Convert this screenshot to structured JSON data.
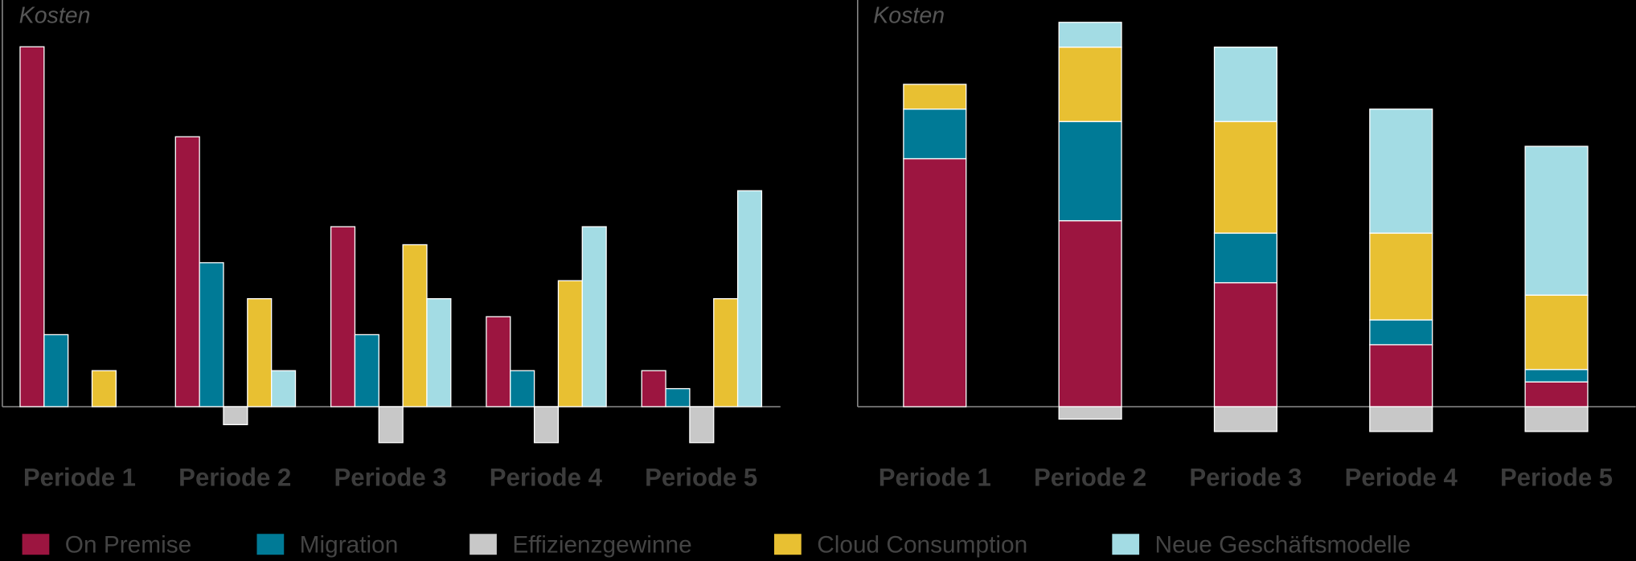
{
  "chart_data": [
    {
      "type": "grouped_bar",
      "y_label": "Kosten",
      "categories": [
        "Periode 1",
        "Periode 2",
        "Periode 3",
        "Periode 4",
        "Periode 5"
      ],
      "ylim": [
        -2,
        11.3
      ],
      "series": [
        {
          "name": "On Premise",
          "color": "#9c1540",
          "values": [
            10,
            7.5,
            5,
            2.5,
            1
          ]
        },
        {
          "name": "Migration",
          "color": "#007a96",
          "values": [
            2,
            4,
            2,
            1,
            0.5
          ]
        },
        {
          "name": "Effizienzgewinne",
          "color": "#c8c8c8",
          "values": [
            0,
            -0.5,
            -1,
            -1,
            -1
          ]
        },
        {
          "name": "Cloud Consumption",
          "color": "#e8c032",
          "values": [
            1,
            3,
            4.5,
            3.5,
            3
          ]
        },
        {
          "name": "Neue Geschäftsmodelle",
          "color": "#a3dce4",
          "values": [
            0,
            1,
            3,
            5,
            6
          ]
        }
      ]
    },
    {
      "type": "stacked_bar",
      "y_label": "Kosten",
      "categories": [
        "Periode 1",
        "Periode 2",
        "Periode 3",
        "Periode 4",
        "Periode 5"
      ],
      "ylim": [
        -2,
        16.4
      ],
      "series": [
        {
          "name": "On Premise",
          "color": "#9c1540",
          "values": [
            10,
            7.5,
            5,
            2.5,
            1
          ]
        },
        {
          "name": "Migration",
          "color": "#007a96",
          "values": [
            2,
            4,
            2,
            1,
            0.5
          ]
        },
        {
          "name": "Effizienzgewinne",
          "color": "#c8c8c8",
          "values": [
            0,
            -0.5,
            -1,
            -1,
            -1
          ]
        },
        {
          "name": "Cloud Consumption",
          "color": "#e8c032",
          "values": [
            1,
            3,
            4.5,
            3.5,
            3
          ]
        },
        {
          "name": "Neue Geschäftsmodelle",
          "color": "#a3dce4",
          "values": [
            0,
            1,
            3,
            5,
            6
          ]
        }
      ]
    }
  ]
}
